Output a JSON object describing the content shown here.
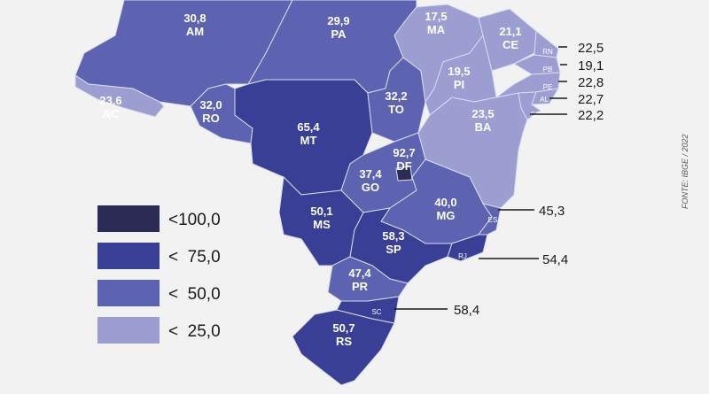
{
  "source": "FONTE: IBGE / 2022",
  "colors": {
    "background": "#f2f2f2",
    "lt100": "#2c2b55",
    "lt75": "#3a3f96",
    "lt50": "#5d63b0",
    "lt25": "#9c9ed2"
  },
  "legend": [
    {
      "label": "<100,0",
      "color": "#2c2b55"
    },
    {
      "label": "<  75,0",
      "color": "#3a3f96"
    },
    {
      "label": "<  50,0",
      "color": "#5d63b0"
    },
    {
      "label": "<  25,0",
      "color": "#9c9ed2"
    }
  ],
  "states": [
    {
      "code": "AM",
      "value": "30,8",
      "color": "#5d63b0"
    },
    {
      "code": "PA",
      "value": "29,9",
      "color": "#5d63b0"
    },
    {
      "code": "AC",
      "value": "23,6",
      "color": "#9c9ed2"
    },
    {
      "code": "RO",
      "value": "32,0",
      "color": "#5d63b0"
    },
    {
      "code": "MT",
      "value": "65,4",
      "color": "#3a3f96"
    },
    {
      "code": "TO",
      "value": "32,2",
      "color": "#5d63b0"
    },
    {
      "code": "MA",
      "value": "17,5",
      "color": "#9c9ed2"
    },
    {
      "code": "PI",
      "value": "19,5",
      "color": "#9c9ed2"
    },
    {
      "code": "CE",
      "value": "21,1",
      "color": "#9c9ed2"
    },
    {
      "code": "BA",
      "value": "23,5",
      "color": "#9c9ed2"
    },
    {
      "code": "GO",
      "value": "37,4",
      "color": "#5d63b0"
    },
    {
      "code": "DF",
      "value": "92,7",
      "color": "#2c2b55"
    },
    {
      "code": "MG",
      "value": "40,0",
      "color": "#5d63b0"
    },
    {
      "code": "MS",
      "value": "50,1",
      "color": "#3a3f96"
    },
    {
      "code": "SP",
      "value": "58,3",
      "color": "#3a3f96"
    },
    {
      "code": "PR",
      "value": "47,4",
      "color": "#5d63b0"
    },
    {
      "code": "RS",
      "value": "50,7",
      "color": "#3a3f96"
    },
    {
      "code": "RN",
      "value": "22,5",
      "color": "#9c9ed2"
    },
    {
      "code": "PB",
      "value": "19,1",
      "color": "#9c9ed2"
    },
    {
      "code": "PE",
      "value": "22,8",
      "color": "#9c9ed2"
    },
    {
      "code": "AL",
      "value": "22,7",
      "color": "#9c9ed2"
    },
    {
      "code": "SE",
      "value": "22,2",
      "color": "#9c9ed2"
    },
    {
      "code": "ES",
      "value": "45,3",
      "color": "#5d63b0"
    },
    {
      "code": "RJ",
      "value": "54,4",
      "color": "#3a3f96"
    },
    {
      "code": "SC",
      "value": "58,4",
      "color": "#3a3f96"
    }
  ]
}
